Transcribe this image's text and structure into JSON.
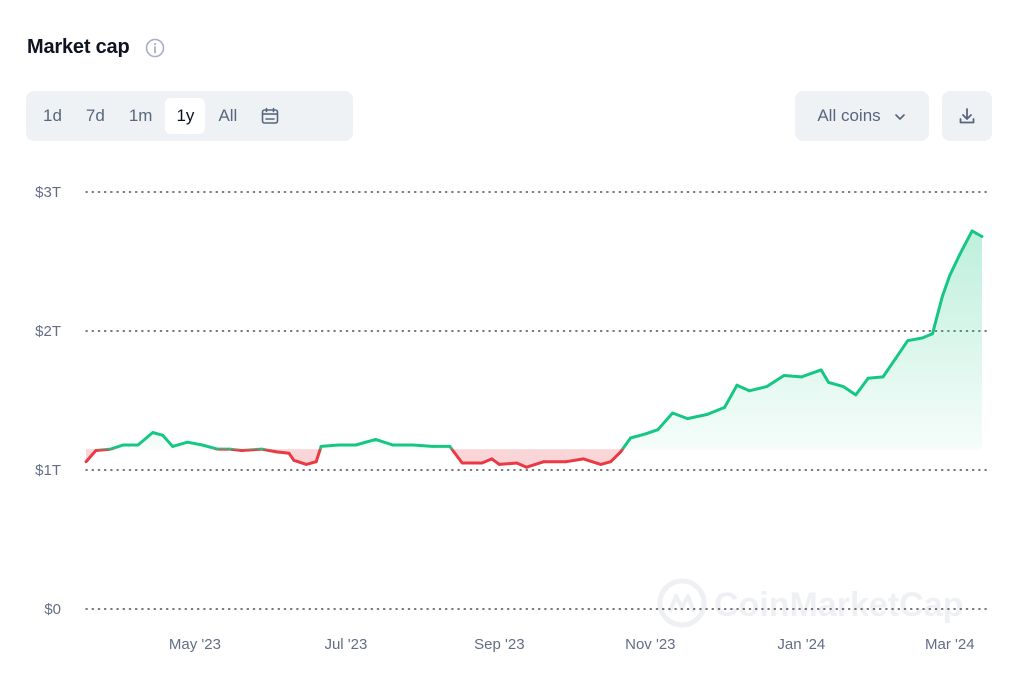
{
  "header": {
    "title": "Market cap",
    "info_icon": "info-icon"
  },
  "range_tabs": [
    {
      "label": "1d",
      "active": false
    },
    {
      "label": "7d",
      "active": false
    },
    {
      "label": "1m",
      "active": false
    },
    {
      "label": "1y",
      "active": true
    },
    {
      "label": "All",
      "active": false
    }
  ],
  "calendar_icon": "calendar-icon",
  "coins_select": {
    "label": "All coins",
    "icon": "chevron-down-icon"
  },
  "download_icon": "download-icon",
  "watermark": "CoinMarketCap",
  "colors": {
    "up": "#16c784",
    "down": "#ea3943",
    "grid": "#2b2b2b",
    "accent_bg": "#eff2f5"
  },
  "chart_data": {
    "type": "area",
    "title": "Market cap",
    "baseline": 1.15,
    "y_unit": "trillion USD",
    "ylim": [
      0,
      3
    ],
    "y_ticks": [
      {
        "value": 0,
        "label": "$0"
      },
      {
        "value": 1,
        "label": "$1T"
      },
      {
        "value": 2,
        "label": "$2T"
      },
      {
        "value": 3,
        "label": "$3T"
      }
    ],
    "x_ticks": [
      {
        "date": "2023-05-01",
        "label": "May '23"
      },
      {
        "date": "2023-07-01",
        "label": "Jul '23"
      },
      {
        "date": "2023-09-01",
        "label": "Sep '23"
      },
      {
        "date": "2023-11-01",
        "label": "Nov '23"
      },
      {
        "date": "2024-01-01",
        "label": "Jan '24"
      },
      {
        "date": "2024-03-01",
        "label": "Mar '24"
      }
    ],
    "xlim": [
      "2023-03-18",
      "2024-03-14"
    ],
    "grid": true,
    "series": [
      {
        "points": [
          [
            "2023-03-18",
            1.06
          ],
          [
            "2023-03-22",
            1.14
          ],
          [
            "2023-03-28",
            1.15
          ],
          [
            "2023-04-02",
            1.18
          ],
          [
            "2023-04-08",
            1.18
          ],
          [
            "2023-04-14",
            1.27
          ],
          [
            "2023-04-18",
            1.25
          ],
          [
            "2023-04-22",
            1.17
          ],
          [
            "2023-04-28",
            1.2
          ],
          [
            "2023-05-04",
            1.18
          ],
          [
            "2023-05-10",
            1.15
          ],
          [
            "2023-05-15",
            1.15
          ],
          [
            "2023-05-20",
            1.14
          ],
          [
            "2023-05-28",
            1.15
          ],
          [
            "2023-06-03",
            1.13
          ],
          [
            "2023-06-08",
            1.12
          ],
          [
            "2023-06-10",
            1.07
          ],
          [
            "2023-06-15",
            1.04
          ],
          [
            "2023-06-19",
            1.06
          ],
          [
            "2023-06-21",
            1.17
          ],
          [
            "2023-06-28",
            1.18
          ],
          [
            "2023-07-05",
            1.18
          ],
          [
            "2023-07-13",
            1.22
          ],
          [
            "2023-07-20",
            1.18
          ],
          [
            "2023-07-28",
            1.18
          ],
          [
            "2023-08-05",
            1.17
          ],
          [
            "2023-08-12",
            1.17
          ],
          [
            "2023-08-17",
            1.05
          ],
          [
            "2023-08-25",
            1.05
          ],
          [
            "2023-08-29",
            1.08
          ],
          [
            "2023-09-01",
            1.04
          ],
          [
            "2023-09-08",
            1.05
          ],
          [
            "2023-09-12",
            1.02
          ],
          [
            "2023-09-19",
            1.06
          ],
          [
            "2023-09-28",
            1.06
          ],
          [
            "2023-10-05",
            1.08
          ],
          [
            "2023-10-12",
            1.04
          ],
          [
            "2023-10-16",
            1.06
          ],
          [
            "2023-10-20",
            1.13
          ],
          [
            "2023-10-24",
            1.23
          ],
          [
            "2023-10-30",
            1.26
          ],
          [
            "2023-11-04",
            1.29
          ],
          [
            "2023-11-10",
            1.41
          ],
          [
            "2023-11-16",
            1.37
          ],
          [
            "2023-11-24",
            1.4
          ],
          [
            "2023-12-01",
            1.45
          ],
          [
            "2023-12-06",
            1.61
          ],
          [
            "2023-12-11",
            1.57
          ],
          [
            "2023-12-18",
            1.6
          ],
          [
            "2023-12-25",
            1.68
          ],
          [
            "2024-01-01",
            1.67
          ],
          [
            "2024-01-09",
            1.72
          ],
          [
            "2024-01-12",
            1.63
          ],
          [
            "2024-01-18",
            1.6
          ],
          [
            "2024-01-23",
            1.54
          ],
          [
            "2024-01-28",
            1.66
          ],
          [
            "2024-02-03",
            1.67
          ],
          [
            "2024-02-08",
            1.8
          ],
          [
            "2024-02-13",
            1.93
          ],
          [
            "2024-02-19",
            1.95
          ],
          [
            "2024-02-23",
            1.98
          ],
          [
            "2024-02-27",
            2.25
          ],
          [
            "2024-03-01",
            2.4
          ],
          [
            "2024-03-05",
            2.55
          ],
          [
            "2024-03-10",
            2.72
          ],
          [
            "2024-03-14",
            2.68
          ]
        ]
      }
    ]
  }
}
